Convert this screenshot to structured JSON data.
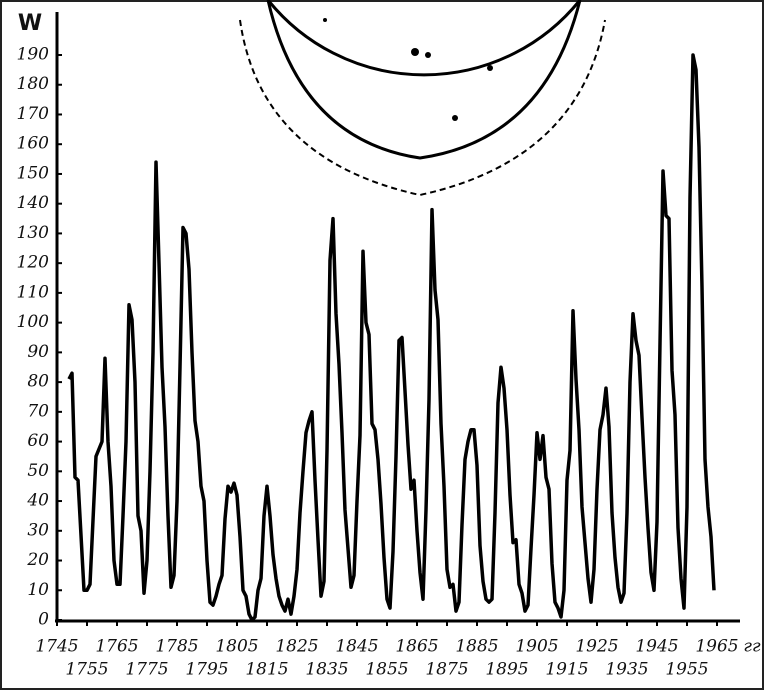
{
  "chart_data": {
    "type": "line",
    "y_label": "W",
    "x_label": "гг",
    "x": [
      1749,
      1750,
      1751,
      1752,
      1754,
      1755,
      1756,
      1758,
      1760,
      1761,
      1762,
      1763,
      1764,
      1765,
      1766,
      1767,
      1768,
      1769,
      1770,
      1771,
      1772,
      1773,
      1774,
      1775,
      1776,
      1777,
      1778,
      1779,
      1780,
      1781,
      1782,
      1783,
      1784,
      1785,
      1786,
      1787,
      1788,
      1789,
      1790,
      1791,
      1792,
      1793,
      1794,
      1795,
      1796,
      1797,
      1798,
      1799,
      1800,
      1801,
      1802,
      1803,
      1804,
      1805,
      1806,
      1807,
      1808,
      1809,
      1810,
      1811,
      1812,
      1813,
      1814,
      1815,
      1816,
      1817,
      1818,
      1819,
      1820,
      1821,
      1822,
      1823,
      1824,
      1825,
      1826,
      1827,
      1828,
      1829,
      1830,
      1831,
      1832,
      1833,
      1834,
      1835,
      1836,
      1837,
      1838,
      1839,
      1840,
      1841,
      1842,
      1843,
      1844,
      1845,
      1846,
      1847,
      1848,
      1849,
      1850,
      1851,
      1852,
      1853,
      1854,
      1855,
      1856,
      1857,
      1858,
      1859,
      1860,
      1861,
      1862,
      1863,
      1864,
      1865,
      1866,
      1867,
      1868,
      1869,
      1870,
      1871,
      1872,
      1873,
      1874,
      1875,
      1876,
      1877,
      1878,
      1879,
      1880,
      1881,
      1882,
      1883,
      1884,
      1885,
      1886,
      1887,
      1888,
      1889,
      1890,
      1891,
      1892,
      1893,
      1894,
      1895,
      1896,
      1897,
      1898,
      1899,
      1900,
      1901,
      1902,
      1903,
      1904,
      1905,
      1906,
      1907,
      1908,
      1909,
      1910,
      1911,
      1912,
      1913,
      1914,
      1915,
      1916,
      1917,
      1918,
      1919,
      1920,
      1921,
      1922,
      1923,
      1924,
      1925,
      1926,
      1927,
      1928,
      1929,
      1930,
      1931,
      1932,
      1933,
      1934,
      1935,
      1936,
      1937,
      1938,
      1939,
      1940,
      1941,
      1942,
      1943,
      1944,
      1945,
      1946,
      1947,
      1948,
      1949,
      1950,
      1951,
      1952,
      1953,
      1954,
      1955,
      1956,
      1957,
      1958,
      1959,
      1960,
      1961,
      1962,
      1963,
      1964
    ],
    "series": [
      {
        "color": "#000000",
        "values": [
          81,
          83,
          48,
          47,
          10,
          10,
          12,
          55,
          60,
          88,
          60,
          45,
          20,
          12,
          12,
          35,
          60,
          106,
          101,
          80,
          35,
          30,
          9,
          20,
          50,
          90,
          154,
          120,
          85,
          65,
          35,
          11,
          15,
          40,
          85,
          132,
          130,
          118,
          90,
          67,
          60,
          45,
          40,
          20,
          6,
          5,
          8,
          12,
          15,
          34,
          45,
          43,
          46,
          42,
          28,
          10,
          8,
          2,
          0,
          1,
          10,
          14,
          35,
          45,
          35,
          22,
          14,
          8,
          5,
          3,
          7,
          2,
          8,
          17,
          36,
          50,
          63,
          67,
          70,
          47,
          27,
          8,
          13,
          57,
          121,
          135,
          103,
          86,
          63,
          37,
          24,
          11,
          15,
          40,
          62,
          124,
          100,
          96,
          66,
          64,
          54,
          39,
          21,
          7,
          4,
          23,
          55,
          94,
          95,
          77,
          59,
          44,
          47,
          30,
          16,
          7,
          37,
          74,
          138,
          111,
          101,
          66,
          45,
          17,
          11,
          12,
          3,
          6,
          32,
          54,
          60,
          64,
          64,
          52,
          25,
          13,
          7,
          6,
          7,
          36,
          73,
          85,
          78,
          64,
          42,
          26,
          27,
          12,
          9,
          3,
          5,
          24,
          42,
          63,
          54,
          62,
          48,
          44,
          19,
          6,
          4,
          1,
          10,
          47,
          57,
          104,
          81,
          64,
          38,
          26,
          14,
          6,
          17,
          44,
          64,
          69,
          78,
          65,
          36,
          21,
          11,
          6,
          9,
          36,
          80,
          103,
          94,
          89,
          68,
          48,
          31,
          16,
          10,
          33,
          93,
          151,
          136,
          135,
          84,
          69,
          31,
          14,
          4,
          38,
          142,
          190,
          185,
          159,
          112,
          54,
          38,
          28,
          10
        ]
      }
    ],
    "xlim": [
      1745,
      1970
    ],
    "xticks": [
      1745,
      1755,
      1765,
      1775,
      1785,
      1795,
      1805,
      1815,
      1825,
      1835,
      1845,
      1855,
      1865,
      1875,
      1885,
      1895,
      1905,
      1915,
      1925,
      1935,
      1945,
      1955,
      1965
    ],
    "ylim": [
      0,
      195
    ],
    "yticks": [
      0,
      10,
      20,
      30,
      40,
      50,
      60,
      70,
      80,
      90,
      100,
      110,
      120,
      130,
      140,
      150,
      160,
      170,
      180,
      190
    ],
    "grid": false
  }
}
